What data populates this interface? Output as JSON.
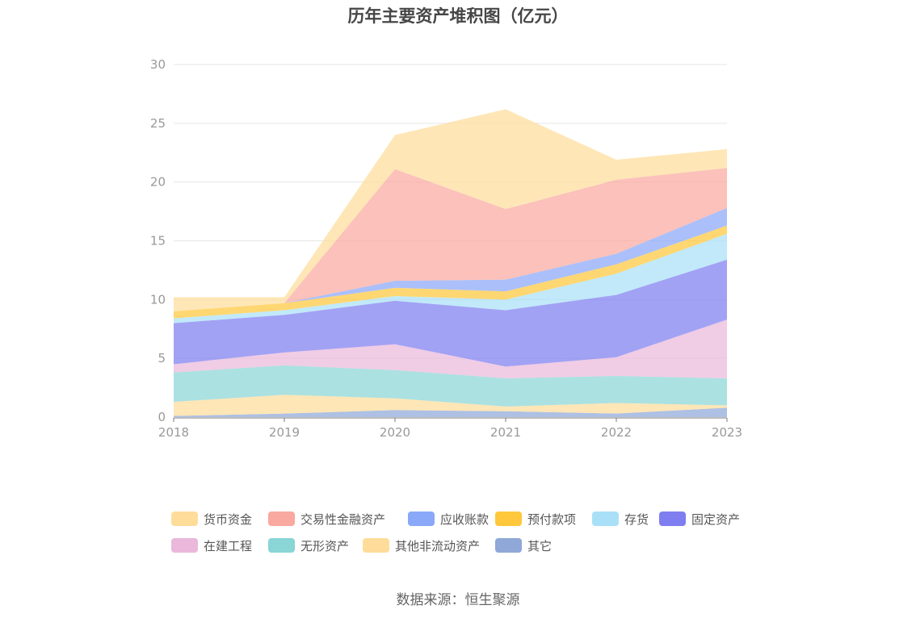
{
  "chart_data": {
    "type": "area",
    "stacked": true,
    "title": "历年主要资产堆积图（亿元）",
    "xlabel": "",
    "ylabel": "",
    "x": [
      "2018",
      "2019",
      "2020",
      "2021",
      "2022",
      "2023"
    ],
    "ylim": [
      0,
      30
    ],
    "yticks": [
      0,
      5,
      10,
      15,
      20,
      25,
      30
    ],
    "grid": true,
    "legend_position": "bottom",
    "series": [
      {
        "name": "其它",
        "color": "#8fa8d8",
        "values": [
          0.1,
          0.3,
          0.6,
          0.5,
          0.3,
          0.8
        ]
      },
      {
        "name": "其他非流动资产",
        "color": "#fedd9a",
        "values": [
          1.2,
          1.6,
          1.0,
          0.4,
          0.9,
          0.2
        ]
      },
      {
        "name": "无形资产",
        "color": "#8ad5d5",
        "values": [
          2.5,
          2.5,
          2.4,
          2.4,
          2.3,
          2.3
        ]
      },
      {
        "name": "在建工程",
        "color": "#eab8db",
        "values": [
          0.7,
          1.1,
          2.2,
          1.0,
          1.6,
          5.0
        ]
      },
      {
        "name": "固定资产",
        "color": "#7e7ef0",
        "values": [
          3.5,
          3.2,
          3.7,
          4.8,
          5.3,
          5.1
        ]
      },
      {
        "name": "存货",
        "color": "#a9e0f8",
        "values": [
          0.4,
          0.4,
          0.4,
          0.9,
          1.8,
          2.2
        ]
      },
      {
        "name": "预付款项",
        "color": "#ffc73c",
        "values": [
          0.6,
          0.6,
          0.7,
          0.7,
          0.8,
          0.7
        ]
      },
      {
        "name": "应收账款",
        "color": "#8aa8f8",
        "values": [
          0.0,
          0.0,
          0.6,
          1.0,
          0.9,
          1.5
        ]
      },
      {
        "name": "交易性金融资产",
        "color": "#f9a99f",
        "values": [
          0.0,
          0.0,
          9.5,
          6.0,
          6.3,
          3.4
        ]
      },
      {
        "name": "货币资金",
        "color": "#fedd9a",
        "values": [
          1.2,
          0.5,
          2.9,
          8.5,
          1.7,
          1.6
        ]
      }
    ],
    "legend_order": [
      "货币资金",
      "交易性金融资产",
      "应收账款",
      "预付款项",
      "存货",
      "固定资产",
      "在建工程",
      "无形资产",
      "其他非流动资产",
      "其它"
    ]
  },
  "source": "数据来源：恒生聚源"
}
